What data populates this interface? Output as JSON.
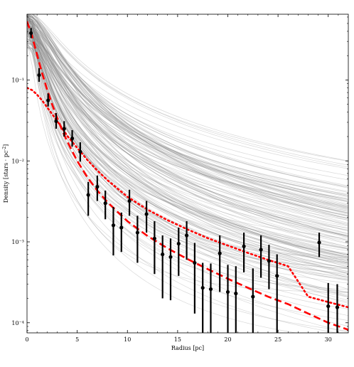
{
  "chart_data": {
    "type": "scatter",
    "xlabel": "Radius [pc]",
    "ylabel": "Density  [stars · pc$^{-2}$]",
    "xlim": [
      0,
      32
    ],
    "ylim": [
      7.5e-05,
      0.65
    ],
    "yscale": "log",
    "grid": false,
    "x_ticks": [
      0,
      5,
      10,
      15,
      20,
      25,
      30
    ],
    "x_tick_labels": [
      "0",
      "5",
      "10",
      "15",
      "20",
      "25",
      "30"
    ],
    "y_ticks": [
      0.0001,
      0.001,
      0.01,
      0.1
    ],
    "y_tick_labels": [
      "10⁻⁴",
      "10⁻³",
      "10⁻²",
      "10⁻¹"
    ],
    "series": [
      {
        "kind": "observed-points-with-errorbars",
        "color": "#000000",
        "points": [
          {
            "x": 0.4,
            "y": 0.38,
            "lo": 0.33,
            "hi": 0.44
          },
          {
            "x": 1.2,
            "y": 0.115,
            "lo": 0.095,
            "hi": 0.14
          },
          {
            "x": 2.1,
            "y": 0.056,
            "lo": 0.047,
            "hi": 0.068
          },
          {
            "x": 2.9,
            "y": 0.031,
            "lo": 0.025,
            "hi": 0.039
          },
          {
            "x": 3.7,
            "y": 0.025,
            "lo": 0.02,
            "hi": 0.031
          },
          {
            "x": 4.5,
            "y": 0.019,
            "lo": 0.015,
            "hi": 0.024
          },
          {
            "x": 5.3,
            "y": 0.013,
            "lo": 0.0098,
            "hi": 0.017
          },
          {
            "x": 6.1,
            "y": 0.0038,
            "lo": 0.0021,
            "hi": 0.0055
          },
          {
            "x": 7.0,
            "y": 0.0048,
            "lo": 0.0032,
            "hi": 0.0066
          },
          {
            "x": 7.8,
            "y": 0.003,
            "lo": 0.0019,
            "hi": 0.0043
          },
          {
            "x": 8.6,
            "y": 0.0016,
            "lo": 0.00068,
            "hi": 0.0027
          },
          {
            "x": 9.4,
            "y": 0.0015,
            "lo": 0.00075,
            "hi": 0.0023
          },
          {
            "x": 10.2,
            "y": 0.0032,
            "lo": 0.0021,
            "hi": 0.0044
          },
          {
            "x": 11.0,
            "y": 0.0013,
            "lo": 0.00055,
            "hi": 0.0021
          },
          {
            "x": 11.9,
            "y": 0.0022,
            "lo": 0.0013,
            "hi": 0.0032
          },
          {
            "x": 12.7,
            "y": 0.0011,
            "lo": 0.0004,
            "hi": 0.0018
          },
          {
            "x": 13.5,
            "y": 0.0007,
            "lo": 0.0002,
            "hi": 0.0012
          },
          {
            "x": 14.3,
            "y": 0.00065,
            "lo": 0.00019,
            "hi": 0.0011
          },
          {
            "x": 15.1,
            "y": 0.00095,
            "lo": 0.00038,
            "hi": 0.0015
          },
          {
            "x": 15.9,
            "y": 0.0012,
            "lo": 0.0006,
            "hi": 0.0018
          },
          {
            "x": 16.7,
            "y": 0.00055,
            "lo": 0.00013,
            "hi": 0.00097
          },
          {
            "x": 17.5,
            "y": 0.00027,
            "lo": 7.5e-05,
            "hi": 0.00055
          },
          {
            "x": 18.3,
            "y": 0.00026,
            "lo": 7.5e-05,
            "hi": 0.00054
          },
          {
            "x": 19.2,
            "y": 0.00072,
            "lo": 0.00024,
            "hi": 0.0012
          },
          {
            "x": 20.0,
            "y": 0.00024,
            "lo": 7.5e-05,
            "hi": 0.00052
          },
          {
            "x": 20.8,
            "y": 0.00023,
            "lo": 7.5e-05,
            "hi": 0.0005
          },
          {
            "x": 21.6,
            "y": 0.00088,
            "lo": 0.00042,
            "hi": 0.0013
          },
          {
            "x": 22.5,
            "y": 0.00021,
            "lo": 7.5e-05,
            "hi": 0.00047
          },
          {
            "x": 23.3,
            "y": 0.0008,
            "lo": 0.00036,
            "hi": 0.0012
          },
          {
            "x": 24.1,
            "y": 0.00058,
            "lo": 0.00026,
            "hi": 0.00092
          },
          {
            "x": 24.9,
            "y": 0.00038,
            "lo": 7.5e-05,
            "hi": 0.0007
          },
          {
            "x": 29.1,
            "y": 0.00098,
            "lo": 0.00065,
            "hi": 0.0013
          },
          {
            "x": 30.0,
            "y": 0.00016,
            "lo": 7.5e-05,
            "hi": 0.00031
          },
          {
            "x": 30.9,
            "y": 0.000155,
            "lo": 7.5e-05,
            "hi": 0.0003
          }
        ]
      },
      {
        "kind": "model-curve",
        "style": "dashed",
        "color": "#ff0000",
        "x": [
          0,
          0.5,
          1,
          1.5,
          2,
          2.5,
          3,
          3.5,
          4,
          5,
          6,
          7,
          8,
          10,
          12,
          14,
          16,
          18,
          20,
          22,
          24,
          26,
          28,
          30,
          32
        ],
        "y": [
          0.53,
          0.35,
          0.205,
          0.122,
          0.076,
          0.05,
          0.034,
          0.024,
          0.0175,
          0.01,
          0.0063,
          0.0043,
          0.0031,
          0.0018,
          0.00118,
          0.00083,
          0.00061,
          0.00046,
          0.00035,
          0.00027,
          0.00021,
          0.00017,
          0.00013,
          0.0001,
          8.2e-05
        ]
      },
      {
        "kind": "model-curve",
        "style": "dotted",
        "color": "#ff0000",
        "x": [
          0,
          0.5,
          1,
          1.5,
          2,
          2.5,
          3,
          4,
          5,
          6,
          7,
          8,
          10,
          12,
          14,
          16,
          18,
          20,
          22,
          24,
          26,
          28,
          30,
          32
        ],
        "y": [
          0.08,
          0.075,
          0.066,
          0.056,
          0.046,
          0.038,
          0.031,
          0.0205,
          0.0145,
          0.0103,
          0.0076,
          0.0058,
          0.0036,
          0.0025,
          0.00185,
          0.00142,
          0.00111,
          0.0009,
          0.00073,
          0.0006,
          0.0005,
          0.00021,
          0.00018,
          0.000155
        ]
      },
      {
        "kind": "posterior-sample-curves",
        "color": "#808080",
        "count": 160
      }
    ]
  }
}
